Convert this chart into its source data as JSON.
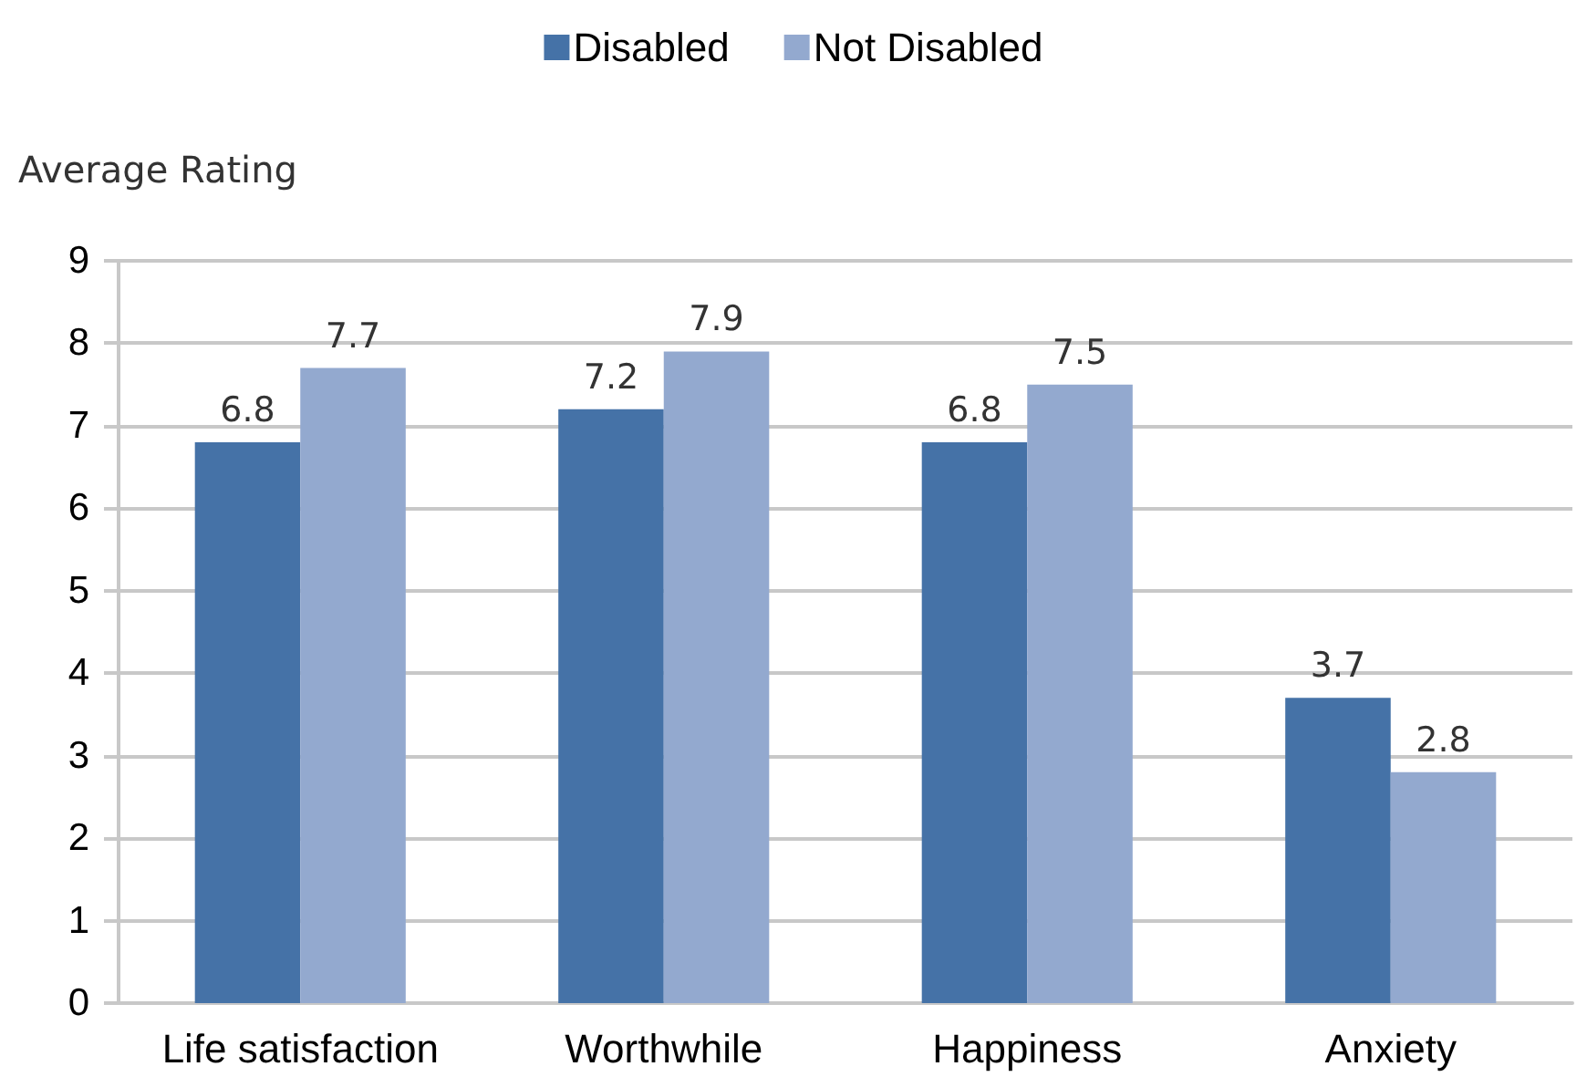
{
  "chart_data": {
    "type": "bar",
    "ylabel": "Average Rating",
    "categories": [
      "Life satisfaction",
      "Worthwhile",
      "Happiness",
      "Anxiety"
    ],
    "series": [
      {
        "name": "Disabled",
        "color": "#4572a7",
        "values": [
          6.8,
          7.2,
          6.8,
          3.7
        ]
      },
      {
        "name": "Not Disabled",
        "color": "#93a9cf",
        "values": [
          7.7,
          7.9,
          7.5,
          2.8
        ]
      }
    ],
    "ylim": [
      0,
      9
    ],
    "yticks": [
      0,
      1,
      2,
      3,
      4,
      5,
      6,
      7,
      8,
      9
    ],
    "grid": "y",
    "legend": "top",
    "data_labels": true
  }
}
